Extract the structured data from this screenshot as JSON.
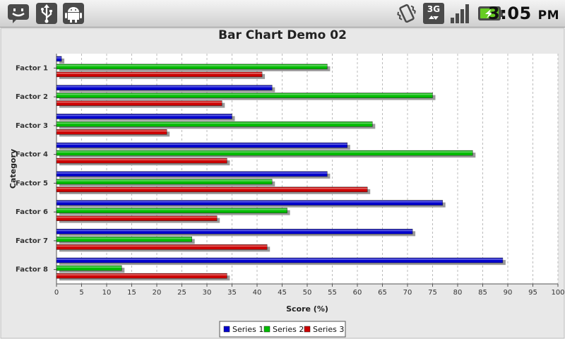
{
  "status_bar": {
    "time": "3:05",
    "ampm": "PM",
    "icons": [
      "smiley-notification-icon",
      "usb-icon",
      "android-debug-icon",
      "vibrate-icon",
      "3g-data-icon",
      "signal-strength-icon",
      "battery-charging-icon"
    ]
  },
  "chart_data": {
    "type": "bar",
    "orientation": "horizontal",
    "title": "Bar Chart Demo 02",
    "xlabel": "Score (%)",
    "ylabel": "Category",
    "xlim": [
      0,
      100
    ],
    "x_ticks": [
      0,
      5,
      10,
      15,
      20,
      25,
      30,
      35,
      40,
      45,
      50,
      55,
      60,
      65,
      70,
      75,
      80,
      85,
      90,
      95,
      100
    ],
    "categories": [
      "Factor 1",
      "Factor 2",
      "Factor 3",
      "Factor 4",
      "Factor 5",
      "Factor 6",
      "Factor 7",
      "Factor 8"
    ],
    "series": [
      {
        "name": "Series 1",
        "color": "#0000cc",
        "values": [
          1,
          43,
          35,
          58,
          54,
          77,
          71,
          89
        ]
      },
      {
        "name": "Series 2",
        "color": "#00bb00",
        "values": [
          54,
          75,
          63,
          83,
          43,
          46,
          27,
          13
        ]
      },
      {
        "name": "Series 3",
        "color": "#cc0000",
        "values": [
          41,
          33,
          22,
          34,
          62,
          32,
          42,
          34
        ]
      }
    ],
    "grid": "vertical-dashed",
    "legend_position": "bottom-center"
  }
}
